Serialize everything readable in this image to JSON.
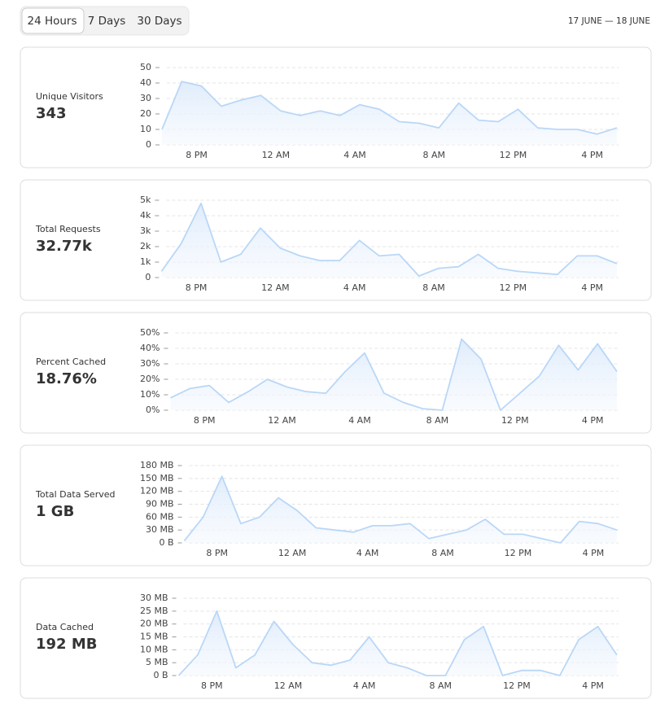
{
  "tabs": [
    "24 Hours",
    "7 Days",
    "30 Days"
  ],
  "selected_tab": 0,
  "date_range": "17 JUNE — 18 JUNE",
  "chart_data": [
    {
      "type": "area",
      "title": "Unique Visitors",
      "summary": "343",
      "color": "#b9d7f7",
      "grid": true,
      "categories": [
        null,
        null,
        "8 PM",
        null,
        null,
        null,
        "12 AM",
        null,
        null,
        null,
        "4 AM",
        null,
        null,
        null,
        "8 AM",
        null,
        null,
        null,
        "12 PM",
        null,
        null,
        null,
        "4 PM",
        null
      ],
      "values": [
        10,
        41,
        38,
        25,
        29,
        32,
        22,
        19,
        22,
        19,
        26,
        23,
        15,
        14,
        11,
        27,
        16,
        15,
        23,
        11,
        10,
        10,
        7,
        11
      ],
      "ylim": [
        0,
        50
      ],
      "yticks": [
        0,
        10,
        20,
        30,
        40,
        50
      ]
    },
    {
      "type": "area",
      "title": "Total Requests",
      "summary": "32.77k",
      "color": "#b9d7f7",
      "grid": true,
      "categories": [
        null,
        null,
        "8 PM",
        null,
        null,
        null,
        "12 AM",
        null,
        null,
        null,
        "4 AM",
        null,
        null,
        null,
        "8 AM",
        null,
        null,
        null,
        "12 PM",
        null,
        null,
        null,
        "4 PM",
        null
      ],
      "values": [
        400,
        2200,
        4800,
        1000,
        1500,
        3200,
        1900,
        1400,
        1100,
        1100,
        2400,
        1400,
        1500,
        100,
        600,
        700,
        1500,
        600,
        400,
        300,
        200,
        1400,
        1400,
        900
      ],
      "ylim": [
        0,
        5000
      ],
      "yticks": [
        0,
        {
          "value": 1000,
          "label": "1k"
        },
        {
          "value": 2000,
          "label": "2k"
        },
        {
          "value": 3000,
          "label": "3k"
        },
        {
          "value": 4000,
          "label": "4k"
        },
        {
          "value": 5000,
          "label": "5k"
        }
      ]
    },
    {
      "type": "area",
      "title": "Percent Cached",
      "summary": "18.76%",
      "color": "#b9d7f7",
      "grid": true,
      "categories": [
        null,
        null,
        "8 PM",
        null,
        null,
        null,
        "12 AM",
        null,
        null,
        null,
        "4 AM",
        null,
        null,
        null,
        "8 AM",
        null,
        null,
        null,
        "12 PM",
        null,
        null,
        null,
        "4 PM",
        null
      ],
      "values": [
        8,
        14,
        16,
        5,
        12,
        20,
        15,
        12,
        11,
        25,
        37,
        11,
        5,
        1,
        0,
        46,
        33,
        0,
        11,
        22,
        42,
        26,
        43,
        25
      ],
      "ylim": [
        0,
        50
      ],
      "yticks": [
        {
          "value": 0,
          "label": "0%"
        },
        {
          "value": 10,
          "label": "10%"
        },
        {
          "value": 20,
          "label": "20%"
        },
        {
          "value": 30,
          "label": "30%"
        },
        {
          "value": 40,
          "label": "40%"
        },
        {
          "value": 50,
          "label": "50%"
        }
      ]
    },
    {
      "type": "area",
      "title": "Total Data Served",
      "summary": "1 GB",
      "color": "#b9d7f7",
      "grid": true,
      "categories": [
        null,
        null,
        "8 PM",
        null,
        null,
        null,
        "12 AM",
        null,
        null,
        null,
        "4 AM",
        null,
        null,
        null,
        "8 AM",
        null,
        null,
        null,
        "12 PM",
        null,
        null,
        null,
        "4 PM",
        null
      ],
      "values": [
        5,
        60,
        155,
        45,
        60,
        105,
        75,
        35,
        30,
        25,
        40,
        40,
        45,
        10,
        20,
        30,
        55,
        20,
        20,
        10,
        0,
        50,
        45,
        30
      ],
      "ylim": [
        0,
        180
      ],
      "yticks": [
        {
          "value": 0,
          "label": "0 B"
        },
        {
          "value": 30,
          "label": "30 MB"
        },
        {
          "value": 60,
          "label": "60 MB"
        },
        {
          "value": 90,
          "label": "90 MB"
        },
        {
          "value": 120,
          "label": "120 MB"
        },
        {
          "value": 150,
          "label": "150 MB"
        },
        {
          "value": 180,
          "label": "180 MB"
        }
      ]
    },
    {
      "type": "area",
      "title": "Data Cached",
      "summary": "192 MB",
      "color": "#b9d7f7",
      "grid": true,
      "categories": [
        null,
        null,
        "8 PM",
        null,
        null,
        null,
        "12 AM",
        null,
        null,
        null,
        "4 AM",
        null,
        null,
        null,
        "8 AM",
        null,
        null,
        null,
        "12 PM",
        null,
        null,
        null,
        "4 PM",
        null
      ],
      "values": [
        0,
        8,
        25,
        3,
        8,
        21,
        12,
        5,
        4,
        6,
        15,
        5,
        3,
        0,
        0,
        14,
        19,
        0,
        2,
        2,
        0,
        14,
        19,
        8
      ],
      "ylim": [
        0,
        30
      ],
      "yticks": [
        {
          "value": 0,
          "label": "0 B"
        },
        {
          "value": 5,
          "label": "5 MB"
        },
        {
          "value": 10,
          "label": "10 MB"
        },
        {
          "value": 15,
          "label": "15 MB"
        },
        {
          "value": 20,
          "label": "20 MB"
        },
        {
          "value": 25,
          "label": "25 MB"
        },
        {
          "value": 30,
          "label": "30 MB"
        }
      ]
    }
  ]
}
